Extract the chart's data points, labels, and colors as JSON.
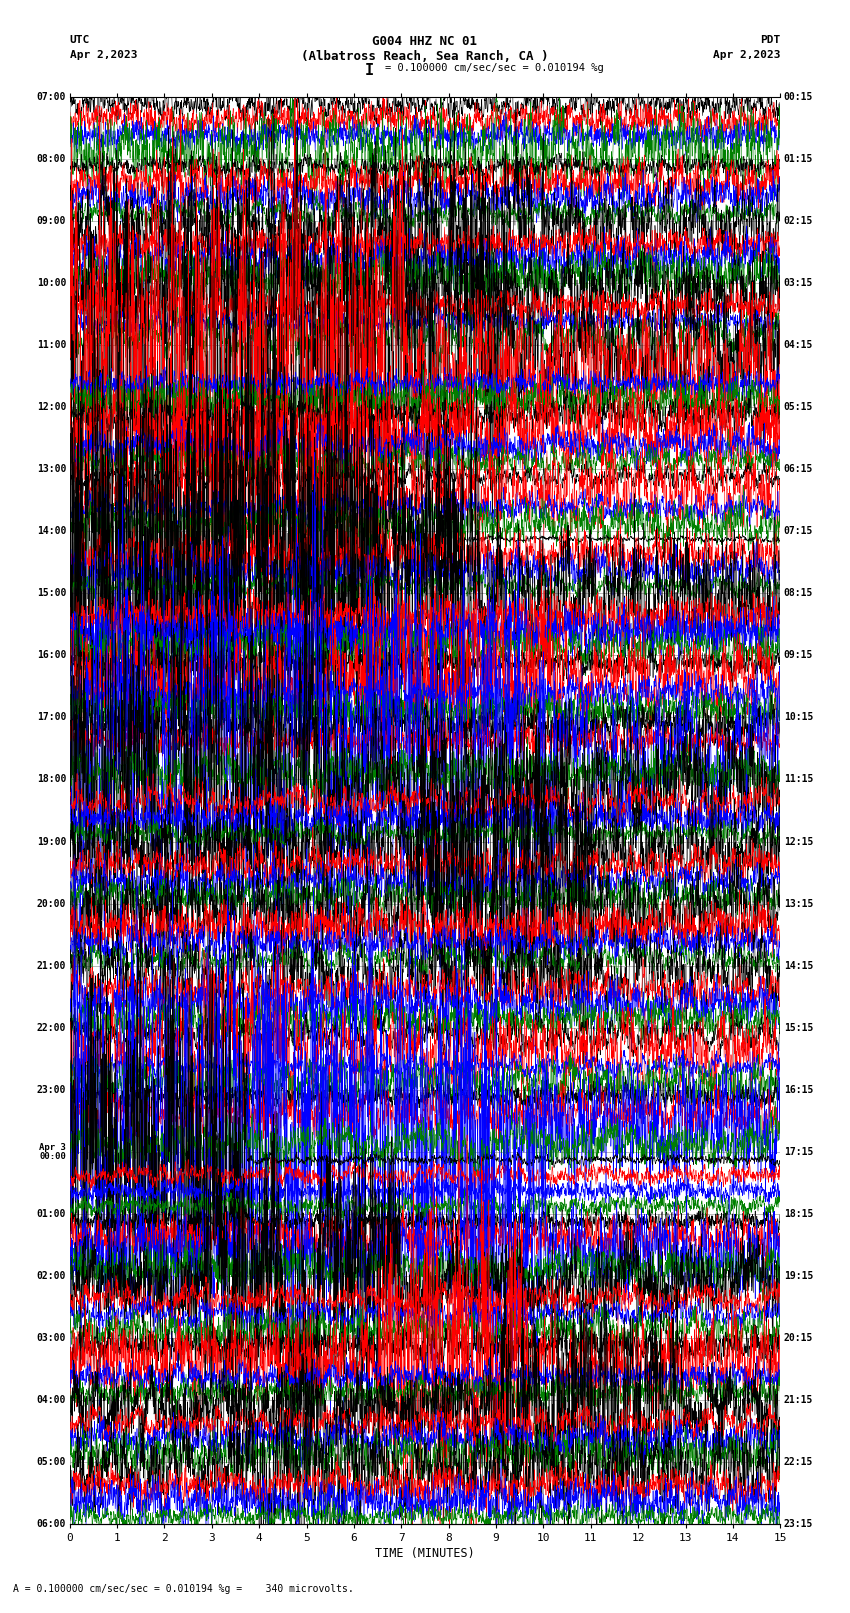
{
  "title_line1": "G004 HHZ NC 01",
  "title_line2": "(Albatross Reach, Sea Ranch, CA )",
  "scale_text": "= 0.100000 cm/sec/sec = 0.010194 %g",
  "left_label": "UTC",
  "left_date": "Apr 2,2023",
  "right_label": "PDT",
  "right_date": "Apr 2,2023",
  "xlabel": "TIME (MINUTES)",
  "footer": "A = 0.100000 cm/sec/sec = 0.010194 %g =    340 microvolts.",
  "utc_labels": [
    "07:00",
    "08:00",
    "09:00",
    "10:00",
    "11:00",
    "12:00",
    "13:00",
    "14:00",
    "15:00",
    "16:00",
    "17:00",
    "18:00",
    "19:00",
    "20:00",
    "21:00",
    "22:00",
    "23:00",
    "Apr 3\n00:00",
    "01:00",
    "02:00",
    "03:00",
    "04:00",
    "05:00",
    "06:00"
  ],
  "pdt_labels": [
    "00:15",
    "01:15",
    "02:15",
    "03:15",
    "04:15",
    "05:15",
    "06:15",
    "07:15",
    "08:15",
    "09:15",
    "10:15",
    "11:15",
    "12:15",
    "13:15",
    "14:15",
    "15:15",
    "16:15",
    "17:15",
    "18:15",
    "19:15",
    "20:15",
    "21:15",
    "22:15",
    "23:15"
  ],
  "n_rows": 23,
  "traces_per_row": 4,
  "colors": [
    "black",
    "red",
    "blue",
    "green"
  ],
  "xmin": 0,
  "xmax": 15,
  "bg_color": "white",
  "grid_color": "#888888",
  "noise_seed": 42,
  "large_amp_rows_traces": [
    [
      0,
      3
    ],
    [
      2,
      0
    ],
    [
      3,
      0
    ],
    [
      4,
      0
    ],
    [
      4,
      1
    ],
    [
      5,
      1
    ],
    [
      6,
      1
    ],
    [
      7,
      0
    ],
    [
      8,
      0
    ],
    [
      9,
      1
    ],
    [
      10,
      2
    ],
    [
      11,
      0
    ],
    [
      12,
      0
    ],
    [
      13,
      0
    ],
    [
      14,
      0
    ],
    [
      15,
      1
    ],
    [
      16,
      2
    ],
    [
      17,
      0
    ],
    [
      18,
      2
    ],
    [
      19,
      0
    ],
    [
      20,
      1
    ],
    [
      21,
      0
    ],
    [
      22,
      0
    ]
  ]
}
